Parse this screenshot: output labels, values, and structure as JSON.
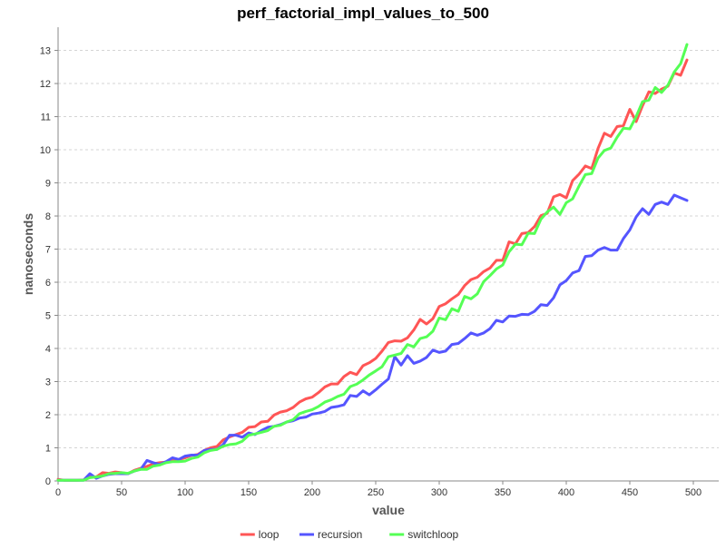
{
  "chart_data": {
    "type": "line",
    "title": "perf_factorial_impl_values_to_500",
    "xlabel": "value",
    "ylabel": "nanoseconds",
    "xlim": [
      0,
      520
    ],
    "ylim": [
      0,
      13.7
    ],
    "x_ticks": [
      0,
      50,
      100,
      150,
      200,
      250,
      300,
      350,
      400,
      450,
      500
    ],
    "y_ticks": [
      0,
      1,
      2,
      3,
      4,
      5,
      6,
      7,
      8,
      9,
      10,
      11,
      12,
      13
    ],
    "grid": "horizontal dashed",
    "legend_position": "bottom-center",
    "x": [
      0,
      5,
      10,
      15,
      20,
      25,
      30,
      35,
      40,
      45,
      50,
      55,
      60,
      65,
      70,
      75,
      80,
      85,
      90,
      95,
      100,
      105,
      110,
      115,
      120,
      125,
      130,
      135,
      140,
      145,
      150,
      155,
      160,
      165,
      170,
      175,
      180,
      185,
      190,
      195,
      200,
      205,
      210,
      215,
      220,
      225,
      230,
      235,
      240,
      245,
      250,
      255,
      260,
      265,
      270,
      275,
      280,
      285,
      290,
      295,
      300,
      305,
      310,
      315,
      320,
      325,
      330,
      335,
      340,
      345,
      350,
      355,
      360,
      365,
      370,
      375,
      380,
      385,
      390,
      395,
      400,
      405,
      410,
      415,
      420,
      425,
      430,
      435,
      440,
      445,
      450,
      455,
      460,
      465,
      470,
      475,
      480,
      485,
      490,
      495
    ],
    "series": [
      {
        "name": "loop",
        "color": "#ff5555",
        "values": [
          0.05,
          0.02,
          0.02,
          0.02,
          0.03,
          0.13,
          0.12,
          0.25,
          0.23,
          0.27,
          0.25,
          0.22,
          0.32,
          0.38,
          0.44,
          0.52,
          0.55,
          0.57,
          0.62,
          0.65,
          0.7,
          0.77,
          0.8,
          0.92,
          1.0,
          1.04,
          1.24,
          1.33,
          1.4,
          1.47,
          1.62,
          1.64,
          1.78,
          1.8,
          1.99,
          2.08,
          2.12,
          2.22,
          2.38,
          2.48,
          2.53,
          2.67,
          2.84,
          2.93,
          2.93,
          3.15,
          3.28,
          3.21,
          3.48,
          3.57,
          3.7,
          3.92,
          4.18,
          4.23,
          4.22,
          4.32,
          4.56,
          4.88,
          4.74,
          4.9,
          5.27,
          5.35,
          5.5,
          5.63,
          5.9,
          6.08,
          6.15,
          6.32,
          6.43,
          6.66,
          6.66,
          7.22,
          7.16,
          7.47,
          7.5,
          7.68,
          8.01,
          8.08,
          8.58,
          8.65,
          8.55,
          9.07,
          9.26,
          9.51,
          9.43,
          10.04,
          10.5,
          10.4,
          10.7,
          10.73,
          11.22,
          10.85,
          11.33,
          11.75,
          11.7,
          11.83,
          11.92,
          12.32,
          12.25,
          12.71
        ]
      },
      {
        "name": "recursion",
        "color": "#5555ff",
        "values": [
          0.02,
          0.02,
          0.02,
          0.02,
          0.02,
          0.22,
          0.08,
          0.15,
          0.2,
          0.22,
          0.22,
          0.22,
          0.3,
          0.35,
          0.62,
          0.55,
          0.5,
          0.58,
          0.7,
          0.65,
          0.75,
          0.78,
          0.78,
          0.92,
          0.95,
          0.95,
          1.1,
          1.38,
          1.38,
          1.32,
          1.45,
          1.4,
          1.52,
          1.62,
          1.65,
          1.7,
          1.78,
          1.82,
          1.9,
          1.93,
          2.02,
          2.05,
          2.1,
          2.22,
          2.25,
          2.3,
          2.58,
          2.55,
          2.72,
          2.6,
          2.75,
          2.92,
          3.08,
          3.75,
          3.5,
          3.78,
          3.55,
          3.62,
          3.73,
          3.95,
          3.88,
          3.92,
          4.12,
          4.15,
          4.3,
          4.47,
          4.4,
          4.47,
          4.6,
          4.85,
          4.8,
          4.98,
          4.97,
          5.03,
          5.02,
          5.12,
          5.32,
          5.3,
          5.53,
          5.92,
          6.05,
          6.28,
          6.35,
          6.78,
          6.8,
          6.97,
          7.05,
          6.97,
          6.97,
          7.32,
          7.58,
          7.97,
          8.22,
          8.05,
          8.35,
          8.42,
          8.35,
          8.63,
          8.55,
          8.47
        ]
      },
      {
        "name": "switchloop",
        "color": "#55ff55",
        "values": [
          0.02,
          0.02,
          0.02,
          0.02,
          0.02,
          0.1,
          0.12,
          0.15,
          0.22,
          0.23,
          0.25,
          0.23,
          0.3,
          0.35,
          0.35,
          0.45,
          0.48,
          0.55,
          0.58,
          0.58,
          0.6,
          0.68,
          0.72,
          0.85,
          0.92,
          0.95,
          1.05,
          1.1,
          1.12,
          1.2,
          1.38,
          1.42,
          1.47,
          1.52,
          1.65,
          1.68,
          1.78,
          1.85,
          2.03,
          2.1,
          2.15,
          2.25,
          2.38,
          2.45,
          2.55,
          2.62,
          2.85,
          2.92,
          3.05,
          3.2,
          3.32,
          3.45,
          3.75,
          3.8,
          3.85,
          4.12,
          4.05,
          4.3,
          4.35,
          4.52,
          4.92,
          4.87,
          5.2,
          5.12,
          5.57,
          5.5,
          5.65,
          6.02,
          6.2,
          6.4,
          6.52,
          6.92,
          7.15,
          7.13,
          7.48,
          7.47,
          7.9,
          8.12,
          8.27,
          8.05,
          8.4,
          8.52,
          8.9,
          9.25,
          9.28,
          9.75,
          9.98,
          10.05,
          10.38,
          10.65,
          10.63,
          11.0,
          11.45,
          11.5,
          11.88,
          11.73,
          11.95,
          12.35,
          12.6,
          13.18
        ]
      }
    ]
  }
}
